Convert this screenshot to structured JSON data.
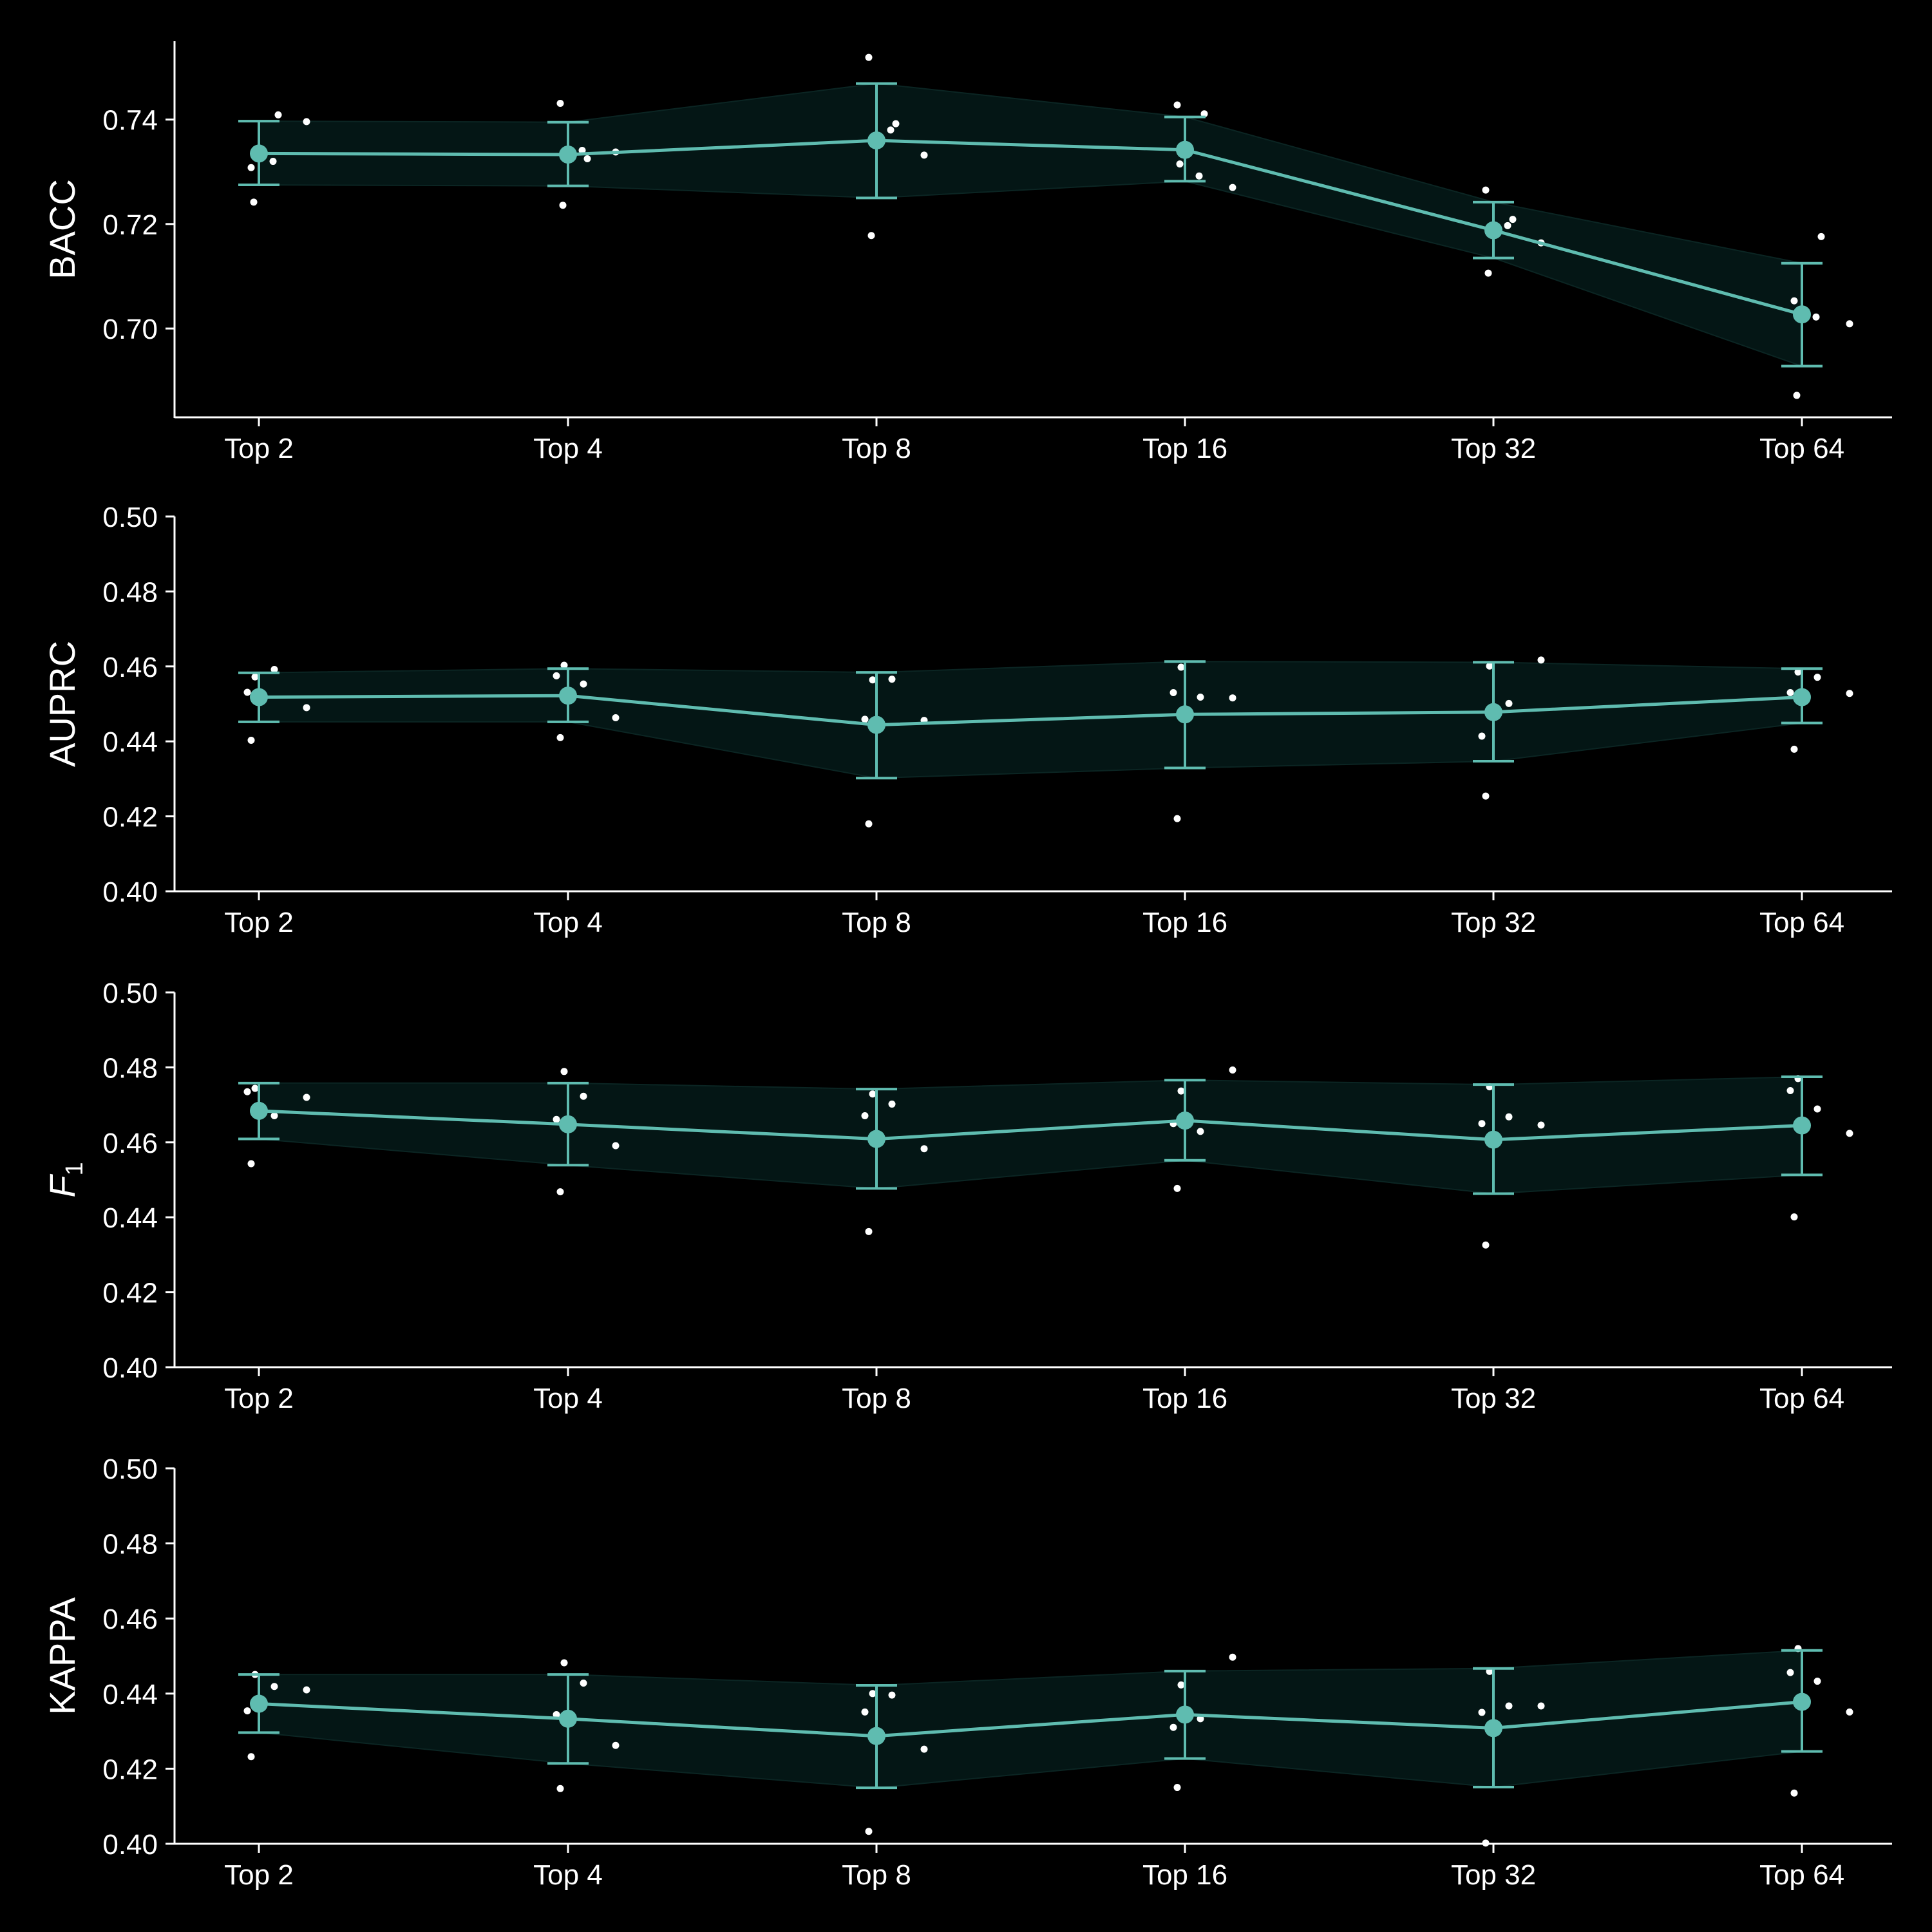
{
  "colors": {
    "background": "#000000",
    "accent": "#5fbcb0",
    "band": "#041615",
    "points": "#ffffff",
    "axes": "#ffffff"
  },
  "chart_data": [
    {
      "type": "line",
      "ylabel": "BACC",
      "categories": [
        "Top 2",
        "Top 4",
        "Top 8",
        "Top 16",
        "Top 32",
        "Top 64"
      ],
      "ylim": [
        0.683,
        0.755
      ],
      "yticks": [
        "0.70",
        "0.72",
        "0.74"
      ],
      "grid": false,
      "means": [
        0.7335,
        0.7333,
        0.736,
        0.7342,
        0.7188,
        0.7027
      ],
      "error_low": [
        0.7275,
        0.7273,
        0.725,
        0.7282,
        0.7135,
        0.6928
      ],
      "error_high": [
        0.7397,
        0.7395,
        0.7469,
        0.7405,
        0.7242,
        0.7125
      ],
      "points": [
        [
          0.7308,
          0.7409,
          0.732,
          0.7396,
          0.7242
        ],
        [
          0.7431,
          0.7325,
          0.7341,
          0.7338,
          0.7236
        ],
        [
          0.7519,
          0.7392,
          0.738,
          0.7332,
          0.7178
        ],
        [
          0.7428,
          0.7411,
          0.7292,
          0.727,
          0.7315
        ],
        [
          0.7265,
          0.7209,
          0.7197,
          0.7164,
          0.7106
        ],
        [
          0.7053,
          0.7176,
          0.7022,
          0.7009,
          0.6872
        ]
      ]
    },
    {
      "type": "line",
      "ylabel": "AUPRC",
      "categories": [
        "Top 2",
        "Top 4",
        "Top 8",
        "Top 16",
        "Top 32",
        "Top 64"
      ],
      "ylim": [
        0.4,
        0.5
      ],
      "yticks": [
        "0.40",
        "0.42",
        "0.44",
        "0.46",
        "0.48",
        "0.50"
      ],
      "grid": false,
      "means": [
        0.4518,
        0.4522,
        0.4444,
        0.4472,
        0.4478,
        0.4518
      ],
      "error_low": [
        0.4452,
        0.4452,
        0.4302,
        0.4329,
        0.4347,
        0.4449
      ],
      "error_high": [
        0.4583,
        0.4594,
        0.4584,
        0.4613,
        0.4611,
        0.4594
      ],
      "points": [
        [
          0.4572,
          0.4592,
          0.4531,
          0.449,
          0.4403
        ],
        [
          0.4603,
          0.4553,
          0.4575,
          0.4463,
          0.441
        ],
        [
          0.4564,
          0.4566,
          0.4459,
          0.4456,
          0.418
        ],
        [
          0.4598,
          0.4518,
          0.453,
          0.4516,
          0.4194
        ],
        [
          0.4601,
          0.4501,
          0.4414,
          0.4617,
          0.4254
        ],
        [
          0.4585,
          0.4571,
          0.453,
          0.4528,
          0.4379
        ]
      ]
    },
    {
      "type": "line",
      "ylabel": "F1",
      "categories": [
        "Top 2",
        "Top 4",
        "Top 8",
        "Top 16",
        "Top 32",
        "Top 64"
      ],
      "ylim": [
        0.4,
        0.5
      ],
      "yticks": [
        "0.40",
        "0.42",
        "0.44",
        "0.46",
        "0.48",
        "0.50"
      ],
      "grid": false,
      "means": [
        0.4684,
        0.4648,
        0.4609,
        0.4658,
        0.4607,
        0.4645
      ],
      "error_low": [
        0.4609,
        0.4539,
        0.4477,
        0.4552,
        0.4463,
        0.4513
      ],
      "error_high": [
        0.4758,
        0.4758,
        0.4742,
        0.4766,
        0.4754,
        0.4775
      ],
      "points": [
        [
          0.4744,
          0.4671,
          0.4735,
          0.472,
          0.4543
        ],
        [
          0.4789,
          0.4723,
          0.4661,
          0.4591,
          0.4468
        ],
        [
          0.4729,
          0.4702,
          0.4671,
          0.4583,
          0.4362
        ],
        [
          0.4737,
          0.4629,
          0.465,
          0.4793,
          0.4477
        ],
        [
          0.4748,
          0.4668,
          0.465,
          0.4646,
          0.4326
        ],
        [
          0.477,
          0.4689,
          0.4738,
          0.4624,
          0.4401
        ]
      ]
    },
    {
      "type": "line",
      "ylabel": "KAPPA",
      "categories": [
        "Top 2",
        "Top 4",
        "Top 8",
        "Top 16",
        "Top 32",
        "Top 64"
      ],
      "ylim": [
        0.4,
        0.5
      ],
      "yticks": [
        "0.40",
        "0.42",
        "0.44",
        "0.46",
        "0.48",
        "0.50"
      ],
      "grid": false,
      "means": [
        0.4373,
        0.4333,
        0.4287,
        0.4344,
        0.4308,
        0.4378
      ],
      "error_low": [
        0.4296,
        0.4214,
        0.4149,
        0.4227,
        0.4151,
        0.4246
      ],
      "error_high": [
        0.4451,
        0.4451,
        0.4422,
        0.446,
        0.4467,
        0.4515
      ],
      "points": [
        [
          0.4451,
          0.4419,
          0.4354,
          0.441,
          0.4232
        ],
        [
          0.4482,
          0.4428,
          0.4344,
          0.4262,
          0.4147
        ],
        [
          0.44,
          0.4396,
          0.4351,
          0.4252,
          0.4033
        ],
        [
          0.4423,
          0.4333,
          0.431,
          0.4497,
          0.415
        ],
        [
          0.4459,
          0.4367,
          0.435,
          0.4367,
          0.4002
        ],
        [
          0.452,
          0.4433,
          0.4456,
          0.4351,
          0.4135
        ]
      ]
    }
  ]
}
